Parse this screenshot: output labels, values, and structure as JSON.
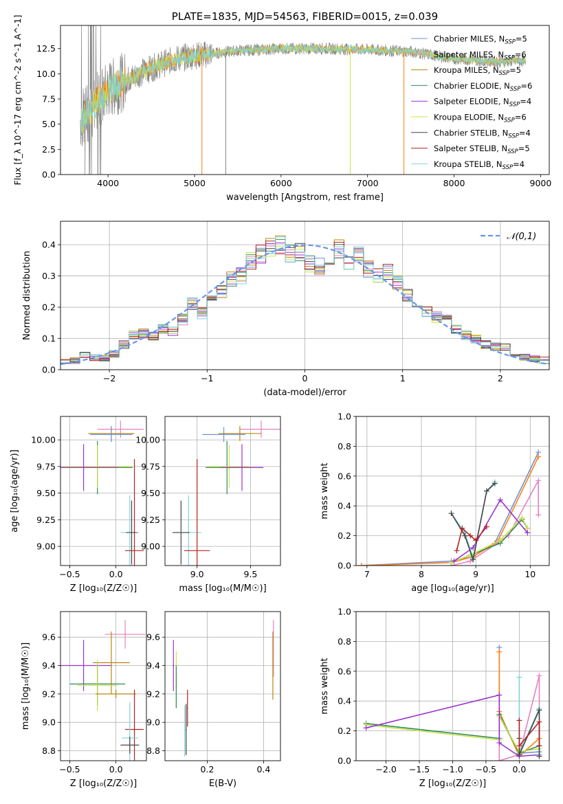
{
  "figure": {
    "title": "PLATE=1835, MJD=54563, FIBERID=0015, z=0.039"
  },
  "colors": {
    "Chabrier MILES": "#6f8fd8",
    "Salpeter MILES": "#e67fc0",
    "Kroupa MILES": "#b8860b",
    "Chabrier ELODIE": "#2e8b57",
    "Salpeter ELODIE": "#9932cc",
    "Kroupa ELODIE": "#c8e24a",
    "Chabrier STELIB": "#444444",
    "Salpeter STELIB": "#b22222",
    "Kroupa STELIB": "#7fd3dd",
    "data": "#808080",
    "orange": "#ff7f0e",
    "normal": "#6495ed"
  },
  "chart_data": [
    {
      "id": "spectrum",
      "type": "line",
      "title": "PLATE=1835, MJD=54563, FIBERID=0015, z=0.039",
      "xlabel": "wavelength [Angstrom, rest frame]",
      "ylabel": "Flux [f_λ 10^-17 erg cm^-2 s^-1 A^-1]",
      "xlim": [
        3450,
        9100
      ],
      "ylim": [
        0,
        14.8
      ],
      "xticks": [
        4000,
        5000,
        6000,
        7000,
        8000,
        9000
      ],
      "yticks": [
        0.0,
        2.5,
        5.0,
        7.5,
        10.0,
        12.5
      ],
      "legend_position": "top-right",
      "series": [
        {
          "name": "Chabrier MILES",
          "sub": "SSP",
          "n": 5
        },
        {
          "name": "Salpeter MILES",
          "sub": "SSP",
          "n": 6
        },
        {
          "name": "Kroupa MILES",
          "sub": "SSP",
          "n": 5
        },
        {
          "name": "Chabrier ELODIE",
          "sub": "SSP",
          "n": 6
        },
        {
          "name": "Salpeter ELODIE",
          "sub": "SSP",
          "n": 4
        },
        {
          "name": "Kroupa ELODIE",
          "sub": "SSP",
          "n": 6
        },
        {
          "name": "Chabrier STELIB",
          "sub": "SSP",
          "n": 4
        },
        {
          "name": "Salpeter STELIB",
          "sub": "SSP",
          "n": 5
        },
        {
          "name": "Kroupa STELIB",
          "sub": "SSP",
          "n": 4
        }
      ],
      "continuum": {
        "x": [
          3700,
          3800,
          3900,
          4000,
          4200,
          4400,
          4600,
          4800,
          5000,
          5200,
          5500,
          6000,
          6500,
          7000,
          7500,
          8000,
          8500,
          8800
        ],
        "y": [
          5.5,
          6.5,
          7.5,
          8.4,
          9.3,
          10.2,
          10.9,
          11.5,
          11.8,
          12.0,
          12.3,
          12.5,
          12.5,
          12.4,
          12.2,
          11.5,
          11.2,
          11.3
        ]
      },
      "spikes": [
        {
          "x": 5085,
          "y": 0.0
        },
        {
          "x": 5360,
          "y": 0.0
        },
        {
          "x": 6800,
          "y": 0.0
        },
        {
          "x": 7420,
          "y": 0.0
        }
      ]
    },
    {
      "id": "residuals",
      "type": "line",
      "xlabel": "(data-model)/error",
      "ylabel": "Normed distribution",
      "xlim": [
        -2.5,
        2.5
      ],
      "ylim": [
        0,
        0.475
      ],
      "xticks": [
        -2,
        -1,
        0,
        1,
        2
      ],
      "yticks": [
        0.0,
        0.1,
        0.2,
        0.3,
        0.4
      ],
      "legend_position": "top-right",
      "normal_label": "𝒩(0,1)",
      "bin_width": 0.1,
      "base_hist": {
        "x": [
          -2.5,
          -2.4,
          -2.3,
          -2.2,
          -2.1,
          -2.0,
          -1.9,
          -1.8,
          -1.7,
          -1.6,
          -1.5,
          -1.4,
          -1.3,
          -1.2,
          -1.1,
          -1.0,
          -0.9,
          -0.8,
          -0.7,
          -0.6,
          -0.5,
          -0.4,
          -0.3,
          -0.2,
          -0.1,
          0.0,
          0.1,
          0.2,
          0.3,
          0.4,
          0.5,
          0.6,
          0.7,
          0.8,
          0.9,
          1.0,
          1.1,
          1.2,
          1.3,
          1.4,
          1.5,
          1.6,
          1.7,
          1.8,
          1.9,
          2.0,
          2.1,
          2.2,
          2.3,
          2.4
        ],
        "y": [
          0.025,
          0.03,
          0.045,
          0.04,
          0.035,
          0.05,
          0.08,
          0.11,
          0.115,
          0.11,
          0.13,
          0.125,
          0.16,
          0.21,
          0.18,
          0.22,
          0.25,
          0.29,
          0.3,
          0.35,
          0.37,
          0.39,
          0.4,
          0.37,
          0.38,
          0.34,
          0.33,
          0.36,
          0.39,
          0.34,
          0.37,
          0.32,
          0.3,
          0.31,
          0.28,
          0.24,
          0.2,
          0.19,
          0.17,
          0.16,
          0.13,
          0.11,
          0.1,
          0.08,
          0.075,
          0.07,
          0.05,
          0.04,
          0.035,
          0.03
        ]
      }
    },
    {
      "id": "age-Z",
      "type": "scatter",
      "xlabel": "Z [log₁₀(Z/Z☉)]",
      "ylabel": "age  [log₁₀(age/yr)]",
      "xlim": [
        -0.6,
        0.33
      ],
      "ylim": [
        8.82,
        10.22
      ],
      "xticks": [
        -0.5,
        0.0
      ],
      "yticks": [
        9.0,
        9.25,
        9.5,
        9.75,
        10.0
      ],
      "points": [
        {
          "s": "Salpeter MILES",
          "x": 0.05,
          "y": 10.1,
          "xerr": 0.25,
          "yerr": 0.08
        },
        {
          "s": "Kroupa MILES",
          "x": -0.05,
          "y": 10.06,
          "xerr": 0.25,
          "yerr": 0.07
        },
        {
          "s": "Chabrier MILES",
          "x": -0.05,
          "y": 10.05,
          "xerr": 0.23,
          "yerr": 0.07
        },
        {
          "s": "Chabrier ELODIE",
          "x": -0.2,
          "y": 9.74,
          "xerr": 0.38,
          "yerr": 0.25
        },
        {
          "s": "Kroupa ELODIE",
          "x": -0.2,
          "y": 9.75,
          "xerr": 0.38,
          "yerr": 0.2
        },
        {
          "s": "Salpeter ELODIE",
          "x": -0.35,
          "y": 9.74,
          "xerr": 0.38,
          "yerr": 0.22
        },
        {
          "s": "Kroupa STELIB",
          "x": 0.15,
          "y": 9.13,
          "xerr": 0.1,
          "yerr": 0.35
        },
        {
          "s": "Chabrier STELIB",
          "x": 0.17,
          "y": 9.13,
          "xerr": 0.06,
          "yerr": 0.3
        },
        {
          "s": "Salpeter STELIB",
          "x": 0.2,
          "y": 8.96,
          "xerr": 0.1,
          "yerr": 0.86
        }
      ]
    },
    {
      "id": "age-mass",
      "type": "scatter",
      "xlabel": "mass [log₁₀(M/M☉)]",
      "ylabel": "",
      "xlim": [
        8.7,
        9.78
      ],
      "ylim": [
        8.82,
        10.22
      ],
      "xticks": [
        9.0,
        9.5
      ],
      "yticks": [
        9.0,
        9.25,
        9.5,
        9.75,
        10.0
      ],
      "points": [
        {
          "s": "Salpeter MILES",
          "x": 9.6,
          "y": 10.1,
          "xerr": 0.2,
          "yerr": 0.08
        },
        {
          "s": "Kroupa MILES",
          "x": 9.4,
          "y": 10.06,
          "xerr": 0.2,
          "yerr": 0.07
        },
        {
          "s": "Chabrier MILES",
          "x": 9.25,
          "y": 10.05,
          "xerr": 0.2,
          "yerr": 0.07
        },
        {
          "s": "Chabrier ELODIE",
          "x": 9.28,
          "y": 9.74,
          "xerr": 0.2,
          "yerr": 0.25
        },
        {
          "s": "Kroupa ELODIE",
          "x": 9.3,
          "y": 9.75,
          "xerr": 0.2,
          "yerr": 0.2
        },
        {
          "s": "Salpeter ELODIE",
          "x": 9.42,
          "y": 9.74,
          "xerr": 0.2,
          "yerr": 0.22
        },
        {
          "s": "Kroupa STELIB",
          "x": 8.92,
          "y": 9.13,
          "xerr": 0.12,
          "yerr": 0.35
        },
        {
          "s": "Chabrier STELIB",
          "x": 8.85,
          "y": 9.13,
          "xerr": 0.08,
          "yerr": 0.3
        },
        {
          "s": "Salpeter STELIB",
          "x": 9.0,
          "y": 8.96,
          "xerr": 0.12,
          "yerr": 0.86
        }
      ]
    },
    {
      "id": "weight-age",
      "type": "line",
      "xlabel": "age  [log₁₀(age/yr)]",
      "ylabel": "mass weight",
      "xlim": [
        6.8,
        10.35
      ],
      "ylim": [
        0,
        1.0
      ],
      "xticks": [
        7,
        8,
        9,
        10
      ],
      "yticks": [
        0.0,
        0.2,
        0.4,
        0.6,
        0.8,
        1.0
      ],
      "series": [
        {
          "s": "Chabrier MILES",
          "x": [
            6.9,
            8.55,
            8.95,
            9.35,
            10.15
          ],
          "y": [
            0.0,
            0.03,
            0.06,
            0.15,
            0.76
          ]
        },
        {
          "s": "Kroupa MILES",
          "x": [
            6.9,
            8.55,
            8.95,
            9.4,
            10.15
          ],
          "y": [
            0.0,
            0.02,
            0.06,
            0.16,
            0.73
          ]
        },
        {
          "s": "Salpeter MILES",
          "x": [
            8.55,
            8.9,
            9.6,
            10.15,
            10.15
          ],
          "y": [
            0.0,
            0.03,
            0.2,
            0.57,
            0.34
          ]
        },
        {
          "s": "Chabrier ELODIE",
          "x": [
            8.55,
            8.9,
            9.45,
            9.85,
            9.95
          ],
          "y": [
            0.02,
            0.07,
            0.15,
            0.31,
            0.25
          ]
        },
        {
          "s": "Kroupa ELODIE",
          "x": [
            8.55,
            8.9,
            9.45,
            9.85,
            9.95
          ],
          "y": [
            0.02,
            0.07,
            0.17,
            0.32,
            0.25
          ]
        },
        {
          "s": "Salpeter ELODIE",
          "x": [
            8.6,
            8.95,
            9.45,
            9.95
          ],
          "y": [
            0.03,
            0.12,
            0.44,
            0.22
          ]
        },
        {
          "s": "Kroupa STELIB",
          "x": [
            8.55,
            8.8,
            8.95,
            9.2,
            9.35
          ],
          "y": [
            0.35,
            0.22,
            0.05,
            0.5,
            0.56
          ]
        },
        {
          "s": "Chabrier STELIB",
          "x": [
            8.55,
            8.8,
            8.95,
            9.2,
            9.35
          ],
          "y": [
            0.35,
            0.2,
            0.04,
            0.5,
            0.55
          ]
        },
        {
          "s": "Salpeter STELIB",
          "x": [
            8.65,
            8.75,
            8.9,
            9.0,
            9.2
          ],
          "y": [
            0.1,
            0.25,
            0.2,
            0.17,
            0.26
          ]
        }
      ]
    },
    {
      "id": "mass-Z",
      "type": "scatter",
      "xlabel": "Z [log₁₀(Z/Z☉)]",
      "ylabel": "mass [log₁₀(M/M☉)]",
      "xlim": [
        -0.6,
        0.33
      ],
      "ylim": [
        8.73,
        9.78
      ],
      "xticks": [
        -0.5,
        0.0
      ],
      "yticks": [
        8.8,
        9.0,
        9.2,
        9.4,
        9.6
      ],
      "points": [
        {
          "s": "Salpeter MILES",
          "x": 0.1,
          "y": 9.62,
          "xerr": 0.22,
          "yerr": 0.1
        },
        {
          "s": "Kroupa MILES",
          "x": -0.05,
          "y": 9.42,
          "xerr": 0.2,
          "yerr": 0.22
        },
        {
          "s": "Chabrier MILES",
          "x": -0.2,
          "y": 9.27,
          "xerr": 0.2,
          "yerr": 0.12
        },
        {
          "s": "Salpeter ELODIE",
          "x": -0.35,
          "y": 9.4,
          "xerr": 0.3,
          "yerr": 0.18
        },
        {
          "s": "Chabrier ELODIE",
          "x": -0.2,
          "y": 9.27,
          "xerr": 0.3,
          "yerr": 0.15
        },
        {
          "s": "Kroupa ELODIE",
          "x": -0.2,
          "y": 9.26,
          "xerr": 0.22,
          "yerr": 0.18
        },
        {
          "s": "Kroupa MILES",
          "x": 0.0,
          "y": 9.2,
          "xerr": 0.22,
          "yerr": 0.03
        },
        {
          "s": "Salpeter STELIB",
          "x": 0.2,
          "y": 8.95,
          "xerr": 0.1,
          "yerr": 0.28
        },
        {
          "s": "Kroupa STELIB",
          "x": 0.15,
          "y": 8.89,
          "xerr": 0.09,
          "yerr": 0.25
        },
        {
          "s": "Chabrier STELIB",
          "x": 0.15,
          "y": 8.84,
          "xerr": 0.1,
          "yerr": 0.06
        }
      ]
    },
    {
      "id": "mass-EBV",
      "type": "scatter",
      "xlabel": "E(B-V)",
      "ylabel": "",
      "xlim": [
        0.05,
        0.46
      ],
      "ylim": [
        8.73,
        9.78
      ],
      "xticks": [
        0.2,
        0.4
      ],
      "yticks": [
        8.8,
        9.0,
        9.2,
        9.4,
        9.6
      ],
      "points": [
        {
          "s": "Salpeter ELODIE",
          "x": 0.08,
          "y": 9.4,
          "xerr": 0.002,
          "yerr": 0.18
        },
        {
          "s": "Kroupa ELODIE",
          "x": 0.09,
          "y": 9.3,
          "xerr": 0.002,
          "yerr": 0.2
        },
        {
          "s": "Chabrier ELODIE",
          "x": 0.09,
          "y": 9.25,
          "xerr": 0.002,
          "yerr": 0.15
        },
        {
          "s": "Salpeter STELIB",
          "x": 0.13,
          "y": 9.1,
          "xerr": 0.002,
          "yerr": 0.13
        },
        {
          "s": "Chabrier STELIB",
          "x": 0.125,
          "y": 8.95,
          "xerr": 0.002,
          "yerr": 0.18
        },
        {
          "s": "Kroupa STELIB",
          "x": 0.12,
          "y": 8.94,
          "xerr": 0.002,
          "yerr": 0.18
        },
        {
          "s": "Salpeter MILES",
          "x": 0.435,
          "y": 9.52,
          "xerr": 0.002,
          "yerr": 0.2
        },
        {
          "s": "Kroupa MILES",
          "x": 0.433,
          "y": 9.4,
          "xerr": 0.002,
          "yerr": 0.24
        }
      ]
    },
    {
      "id": "weight-Z",
      "type": "line",
      "xlabel": "Z [log₁₀(Z/Z☉)]",
      "ylabel": "mass weight",
      "xlim": [
        -2.45,
        0.45
      ],
      "ylim": [
        0,
        1.0
      ],
      "xticks": [
        -2.0,
        -1.5,
        -1.0,
        -0.5,
        0.0
      ],
      "yticks": [
        0.0,
        0.2,
        0.4,
        0.6,
        0.8,
        1.0
      ],
      "series": [
        {
          "s": "Chabrier MILES",
          "x": [
            -0.3,
            -0.3,
            0.0,
            0.3
          ],
          "y": [
            0.76,
            0.3,
            0.05,
            0.06
          ]
        },
        {
          "s": "Kroupa MILES",
          "x": [
            -0.3,
            -0.3,
            0.0,
            0.3
          ],
          "y": [
            0.73,
            0.33,
            0.03,
            0.15
          ]
        },
        {
          "s": "Salpeter MILES",
          "x": [
            -0.3,
            -0.3,
            0.0,
            0.3,
            0.3
          ],
          "y": [
            0.3,
            0.0,
            0.04,
            0.57,
            0.03
          ]
        },
        {
          "s": "Chabrier ELODIE",
          "x": [
            -2.3,
            -0.3,
            -0.3,
            0.0,
            0.3
          ],
          "y": [
            0.25,
            0.15,
            0.31,
            0.05,
            0.1
          ]
        },
        {
          "s": "Kroupa ELODIE",
          "x": [
            -2.3,
            -0.3,
            -0.3,
            0.0,
            0.3
          ],
          "y": [
            0.24,
            0.14,
            0.3,
            0.06,
            0.08
          ]
        },
        {
          "s": "Salpeter ELODIE",
          "x": [
            -2.3,
            -0.3,
            -0.3,
            0.0,
            0.3
          ],
          "y": [
            0.22,
            0.44,
            0.12,
            0.03,
            0.04
          ]
        },
        {
          "s": "Kroupa STELIB",
          "x": [
            0.0,
            0.0,
            0.3,
            0.3
          ],
          "y": [
            0.56,
            0.05,
            0.35,
            0.04
          ]
        },
        {
          "s": "Chabrier STELIB",
          "x": [
            0.0,
            0.0,
            0.3,
            0.3
          ],
          "y": [
            0.15,
            0.04,
            0.34,
            0.03
          ]
        },
        {
          "s": "Salpeter STELIB",
          "x": [
            0.0,
            0.0,
            0.3,
            0.3
          ],
          "y": [
            0.27,
            0.1,
            0.26,
            0.1
          ]
        }
      ]
    }
  ]
}
